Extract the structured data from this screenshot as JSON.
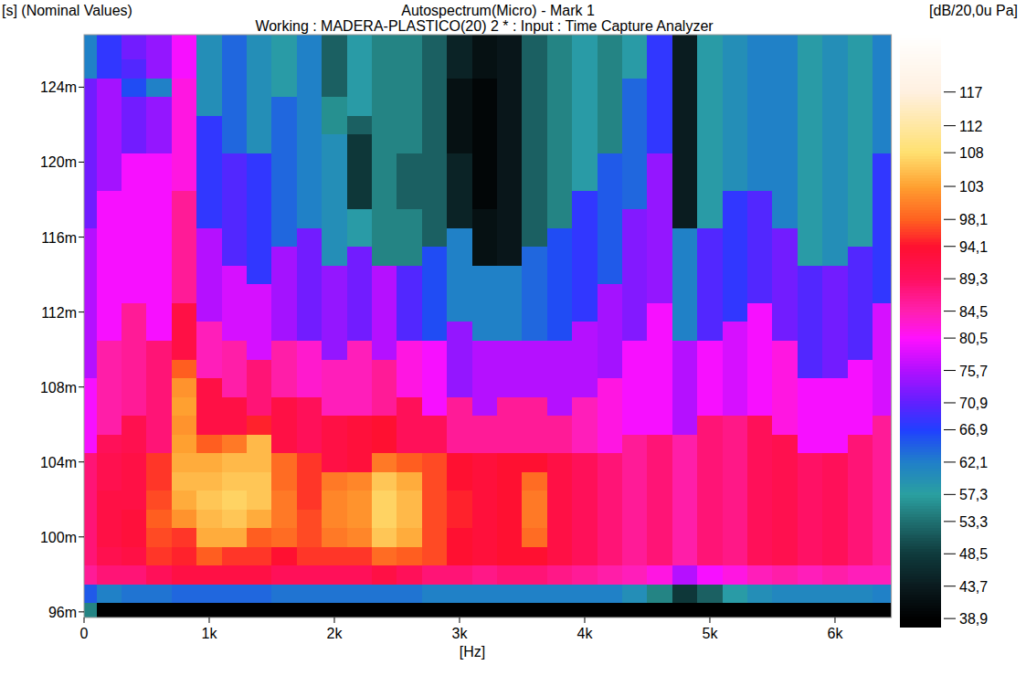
{
  "chart_data": {
    "type": "heatmap",
    "title": "Autospectrum(Micro) - Mark 1",
    "subtitle": "Working : MADERA-PLASTICO(20) 2 * : Input : Time Capture Analyzer",
    "y_label": "[s] (Nominal Values)",
    "x_label": "[Hz]",
    "colorbar_label": "[dB/20,0u Pa]",
    "x": [
      0,
      200,
      400,
      600,
      800,
      1000,
      1200,
      1400,
      1600,
      1800,
      2000,
      2200,
      2400,
      2600,
      2800,
      3000,
      3200,
      3400,
      3600,
      3800,
      4000,
      4200,
      4400,
      4600,
      4800,
      5000,
      5200,
      5400,
      5600,
      5800,
      6000,
      6200,
      6400
    ],
    "y": [
      0.096,
      0.097,
      0.098,
      0.099,
      0.1,
      0.101,
      0.102,
      0.103,
      0.104,
      0.105,
      0.106,
      0.107,
      0.108,
      0.109,
      0.11,
      0.111,
      0.112,
      0.113,
      0.114,
      0.115,
      0.116,
      0.117,
      0.118,
      0.119,
      0.12,
      0.121,
      0.122,
      0.123,
      0.124,
      0.125,
      0.126,
      0.127
    ],
    "values": [
      [
        55,
        65,
        86,
        88,
        88,
        88,
        88,
        88,
        88,
        80,
        80,
        80,
        80,
        76,
        76,
        76,
        76,
        76,
        76,
        76,
        76,
        72,
        72,
        72,
        72,
        72,
        72,
        72,
        72,
        62,
        62,
        62
      ],
      [
        38,
        62,
        88,
        91,
        92,
        92,
        92,
        91,
        91,
        90,
        85,
        85,
        85,
        85,
        85,
        80,
        80,
        80,
        80,
        80,
        80,
        80,
        80,
        75,
        75,
        75,
        75,
        75,
        75,
        68,
        68,
        68
      ],
      [
        38,
        63,
        88,
        92,
        93,
        93,
        92,
        92,
        92,
        91,
        91,
        86,
        86,
        86,
        86,
        86,
        86,
        80,
        80,
        80,
        80,
        80,
        80,
        80,
        80,
        72,
        72,
        72,
        66,
        70,
        72,
        72
      ],
      [
        38,
        63,
        90,
        96,
        97,
        98,
        97,
        96,
        96,
        88,
        88,
        88,
        88,
        88,
        88,
        80,
        80,
        80,
        80,
        80,
        80,
        80,
        80,
        80,
        80,
        74,
        74,
        74,
        62,
        74,
        74,
        74
      ],
      [
        38,
        64,
        92,
        95,
        96,
        102,
        104,
        105,
        104,
        103,
        102,
        103,
        102,
        98,
        92,
        92,
        92,
        86,
        86,
        86,
        86,
        86,
        86,
        82,
        82,
        82,
        82,
        82,
        82,
        80,
        80,
        80
      ],
      [
        38,
        64,
        92,
        98,
        104,
        105,
        106,
        105,
        104,
        98,
        92,
        92,
        92,
        84,
        84,
        84,
        76,
        76,
        76,
        76,
        76,
        68,
        68,
        68,
        68,
        68,
        68,
        60,
        60,
        60,
        60,
        60
      ],
      [
        38,
        64,
        92,
        96,
        104,
        106,
        107,
        106,
        105,
        100,
        92,
        92,
        85,
        85,
        85,
        78,
        78,
        78,
        78,
        70,
        70,
        70,
        70,
        70,
        70,
        64,
        64,
        64,
        64,
        64,
        64,
        64
      ],
      [
        38,
        64,
        92,
        96,
        98,
        104,
        106,
        106,
        105,
        105,
        95,
        88,
        88,
        88,
        78,
        78,
        78,
        78,
        68,
        68,
        68,
        68,
        68,
        68,
        68,
        60,
        60,
        60,
        60,
        60,
        60,
        60
      ],
      [
        38,
        63,
        90,
        94,
        99,
        100,
        100,
        99,
        99,
        92,
        92,
        92,
        85,
        85,
        85,
        75,
        75,
        75,
        75,
        75,
        64,
        64,
        64,
        64,
        64,
        64,
        64,
        64,
        58,
        58,
        58,
        58
      ],
      [
        38,
        63,
        90,
        96,
        97,
        97,
        96,
        96,
        96,
        90,
        90,
        90,
        83,
        83,
        83,
        72,
        72,
        72,
        72,
        72,
        72,
        62,
        62,
        62,
        62,
        62,
        62,
        62,
        62,
        62,
        62,
        62
      ],
      [
        38,
        63,
        90,
        96,
        100,
        101,
        101,
        100,
        92,
        92,
        92,
        84,
        84,
        84,
        74,
        74,
        74,
        74,
        74,
        60,
        60,
        60,
        60,
        60,
        60,
        60,
        56,
        56,
        52,
        52,
        52,
        52
      ],
      [
        38,
        63,
        90,
        96,
        101,
        102,
        102,
        101,
        93,
        93,
        93,
        84,
        84,
        84,
        84,
        72,
        72,
        72,
        72,
        72,
        58,
        58,
        48,
        48,
        48,
        48,
        52,
        58,
        58,
        58,
        58,
        58
      ],
      [
        38,
        63,
        92,
        99,
        106,
        107,
        107,
        106,
        100,
        94,
        94,
        86,
        86,
        86,
        76,
        76,
        76,
        76,
        76,
        55,
        55,
        55,
        55,
        55,
        55,
        55,
        55,
        55,
        55,
        55,
        55,
        55
      ],
      [
        38,
        63,
        90,
        98,
        104,
        105,
        105,
        104,
        98,
        90,
        90,
        90,
        82,
        82,
        82,
        70,
        70,
        70,
        70,
        55,
        55,
        55,
        52,
        52,
        52,
        55,
        55,
        55,
        55,
        55,
        55,
        55
      ],
      [
        38,
        62,
        88,
        97,
        97,
        97,
        97,
        97,
        97,
        90,
        90,
        80,
        80,
        80,
        80,
        66,
        66,
        66,
        66,
        66,
        52,
        52,
        52,
        52,
        52,
        52,
        52,
        52,
        52,
        52,
        52,
        52
      ],
      [
        38,
        62,
        88,
        94,
        94,
        95,
        95,
        94,
        94,
        86,
        86,
        86,
        74,
        74,
        74,
        74,
        62,
        62,
        62,
        62,
        62,
        45,
        45,
        45,
        45,
        42,
        42,
        42,
        42,
        45,
        45,
        45
      ],
      [
        38,
        62,
        87,
        93,
        93,
        93,
        93,
        93,
        93,
        86,
        86,
        76,
        76,
        76,
        76,
        62,
        62,
        62,
        62,
        42,
        42,
        42,
        40,
        40,
        40,
        40,
        40,
        40,
        40,
        42,
        42,
        42
      ],
      [
        38,
        62,
        88,
        94,
        94,
        94,
        94,
        94,
        94,
        86,
        86,
        86,
        76,
        76,
        76,
        62,
        62,
        62,
        62,
        43,
        43,
        43,
        43,
        43,
        43,
        43,
        43,
        43,
        43,
        43,
        43,
        43
      ],
      [
        38,
        62,
        88,
        94,
        99,
        100,
        100,
        99,
        94,
        86,
        86,
        86,
        76,
        76,
        76,
        64,
        64,
        64,
        64,
        64,
        52,
        52,
        52,
        52,
        52,
        52,
        52,
        52,
        52,
        52,
        52,
        52
      ],
      [
        38,
        62,
        87,
        92,
        92,
        92,
        92,
        92,
        92,
        86,
        86,
        76,
        76,
        76,
        76,
        66,
        66,
        66,
        66,
        66,
        66,
        55,
        55,
        55,
        55,
        55,
        55,
        55,
        55,
        55,
        55,
        55
      ],
      [
        38,
        62,
        86,
        90,
        90,
        90,
        90,
        90,
        90,
        84,
        84,
        84,
        76,
        76,
        76,
        76,
        68,
        68,
        68,
        68,
        68,
        68,
        68,
        58,
        58,
        58,
        58,
        58,
        58,
        58,
        58,
        58
      ],
      [
        38,
        62,
        85,
        88,
        88,
        88,
        88,
        88,
        88,
        82,
        82,
        82,
        82,
        75,
        75,
        75,
        75,
        75,
        65,
        65,
        65,
        65,
        65,
        65,
        65,
        55,
        55,
        55,
        55,
        55,
        55,
        55
      ],
      [
        38,
        60,
        84,
        86,
        86,
        86,
        86,
        86,
        86,
        86,
        80,
        80,
        80,
        80,
        80,
        73,
        73,
        73,
        73,
        73,
        73,
        73,
        64,
        64,
        64,
        64,
        64,
        64,
        64,
        58,
        58,
        58
      ],
      [
        38,
        55,
        82,
        88,
        88,
        88,
        88,
        88,
        88,
        88,
        80,
        80,
        80,
        80,
        80,
        80,
        80,
        74,
        74,
        74,
        74,
        74,
        74,
        74,
        74,
        68,
        68,
        68,
        68,
        68,
        68,
        68
      ],
      [
        38,
        48,
        76,
        85,
        85,
        85,
        85,
        85,
        85,
        85,
        76,
        76,
        76,
        76,
        76,
        62,
        62,
        62,
        62,
        62,
        62,
        44,
        44,
        44,
        44,
        44,
        44,
        44,
        44,
        44,
        44,
        44
      ],
      [
        38,
        52,
        80,
        88,
        88,
        88,
        88,
        88,
        88,
        88,
        88,
        80,
        80,
        80,
        80,
        70,
        70,
        70,
        70,
        70,
        70,
        58,
        58,
        58,
        58,
        58,
        58,
        58,
        58,
        58,
        58,
        58
      ],
      [
        38,
        58,
        82,
        87,
        87,
        87,
        87,
        87,
        87,
        87,
        87,
        78,
        78,
        78,
        78,
        78,
        68,
        68,
        68,
        68,
        68,
        68,
        68,
        60,
        60,
        60,
        60,
        60,
        60,
        60,
        60,
        60
      ],
      [
        38,
        60,
        84,
        90,
        90,
        90,
        90,
        90,
        90,
        90,
        90,
        80,
        80,
        80,
        80,
        80,
        80,
        70,
        70,
        70,
        70,
        70,
        70,
        62,
        62,
        62,
        62,
        62,
        62,
        62,
        62,
        62
      ],
      [
        38,
        61,
        85,
        91,
        91,
        91,
        91,
        91,
        91,
        91,
        82,
        82,
        82,
        82,
        82,
        72,
        72,
        72,
        72,
        72,
        72,
        62,
        62,
        62,
        62,
        62,
        62,
        62,
        62,
        62,
        62,
        62
      ],
      [
        38,
        61,
        84,
        89,
        89,
        89,
        89,
        89,
        89,
        80,
        80,
        80,
        80,
        70,
        70,
        70,
        70,
        70,
        70,
        58,
        58,
        58,
        58,
        58,
        58,
        58,
        58,
        58,
        58,
        58,
        58,
        58
      ],
      [
        38,
        61,
        85,
        90,
        90,
        90,
        90,
        90,
        90,
        80,
        80,
        80,
        80,
        72,
        72,
        72,
        72,
        72,
        72,
        60,
        60,
        60,
        60,
        60,
        60,
        60,
        60,
        60,
        60,
        60,
        60,
        60
      ],
      [
        38,
        61,
        84,
        88,
        88,
        88,
        88,
        88,
        88,
        88,
        80,
        80,
        80,
        80,
        70,
        70,
        70,
        70,
        70,
        70,
        58,
        58,
        58,
        58,
        58,
        58,
        58,
        58,
        58,
        58,
        58,
        58
      ],
      [
        38,
        62,
        84,
        86,
        86,
        86,
        86,
        86,
        86,
        86,
        86,
        78,
        78,
        78,
        78,
        78,
        78,
        68,
        68,
        68,
        68,
        68,
        68,
        68,
        68,
        62,
        62,
        62,
        62,
        62,
        62,
        62
      ]
    ],
    "xlim": [
      0,
      6450
    ],
    "ylim": [
      0.0957,
      0.1268
    ],
    "xticks": [
      0,
      {
        "value": 1000,
        "label": "1k"
      },
      {
        "value": 2000,
        "label": "2k"
      },
      {
        "value": 3000,
        "label": "3k"
      },
      {
        "value": 4000,
        "label": "4k"
      },
      {
        "value": 5000,
        "label": "5k"
      },
      {
        "value": 6000,
        "label": "6k"
      }
    ],
    "yticks": [
      {
        "value": 0.096,
        "label": "96m"
      },
      {
        "value": 0.1,
        "label": "100m"
      },
      {
        "value": 0.104,
        "label": "104m"
      },
      {
        "value": 0.108,
        "label": "108m"
      },
      {
        "value": 0.112,
        "label": "112m"
      },
      {
        "value": 0.116,
        "label": "116m"
      },
      {
        "value": 0.12,
        "label": "120m"
      },
      {
        "value": 0.124,
        "label": "124m"
      }
    ],
    "clim": [
      37.7,
      125.5
    ],
    "cticks": [
      117,
      112,
      108,
      103,
      {
        "value": 98.1,
        "label": "98,1"
      },
      {
        "value": 94.1,
        "label": "94,1"
      },
      {
        "value": 89.3,
        "label": "89,3"
      },
      {
        "value": 84.5,
        "label": "84,5"
      },
      {
        "value": 80.5,
        "label": "80,5"
      },
      {
        "value": 75.7,
        "label": "75,7"
      },
      {
        "value": 70.9,
        "label": "70,9"
      },
      {
        "value": 66.9,
        "label": "66,9"
      },
      {
        "value": 62.1,
        "label": "62,1"
      },
      {
        "value": 57.3,
        "label": "57,3"
      },
      {
        "value": 53.3,
        "label": "53,3"
      },
      {
        "value": 48.5,
        "label": "48,5"
      },
      {
        "value": 43.7,
        "label": "43,7"
      },
      {
        "value": 38.9,
        "label": "38,9"
      }
    ]
  }
}
